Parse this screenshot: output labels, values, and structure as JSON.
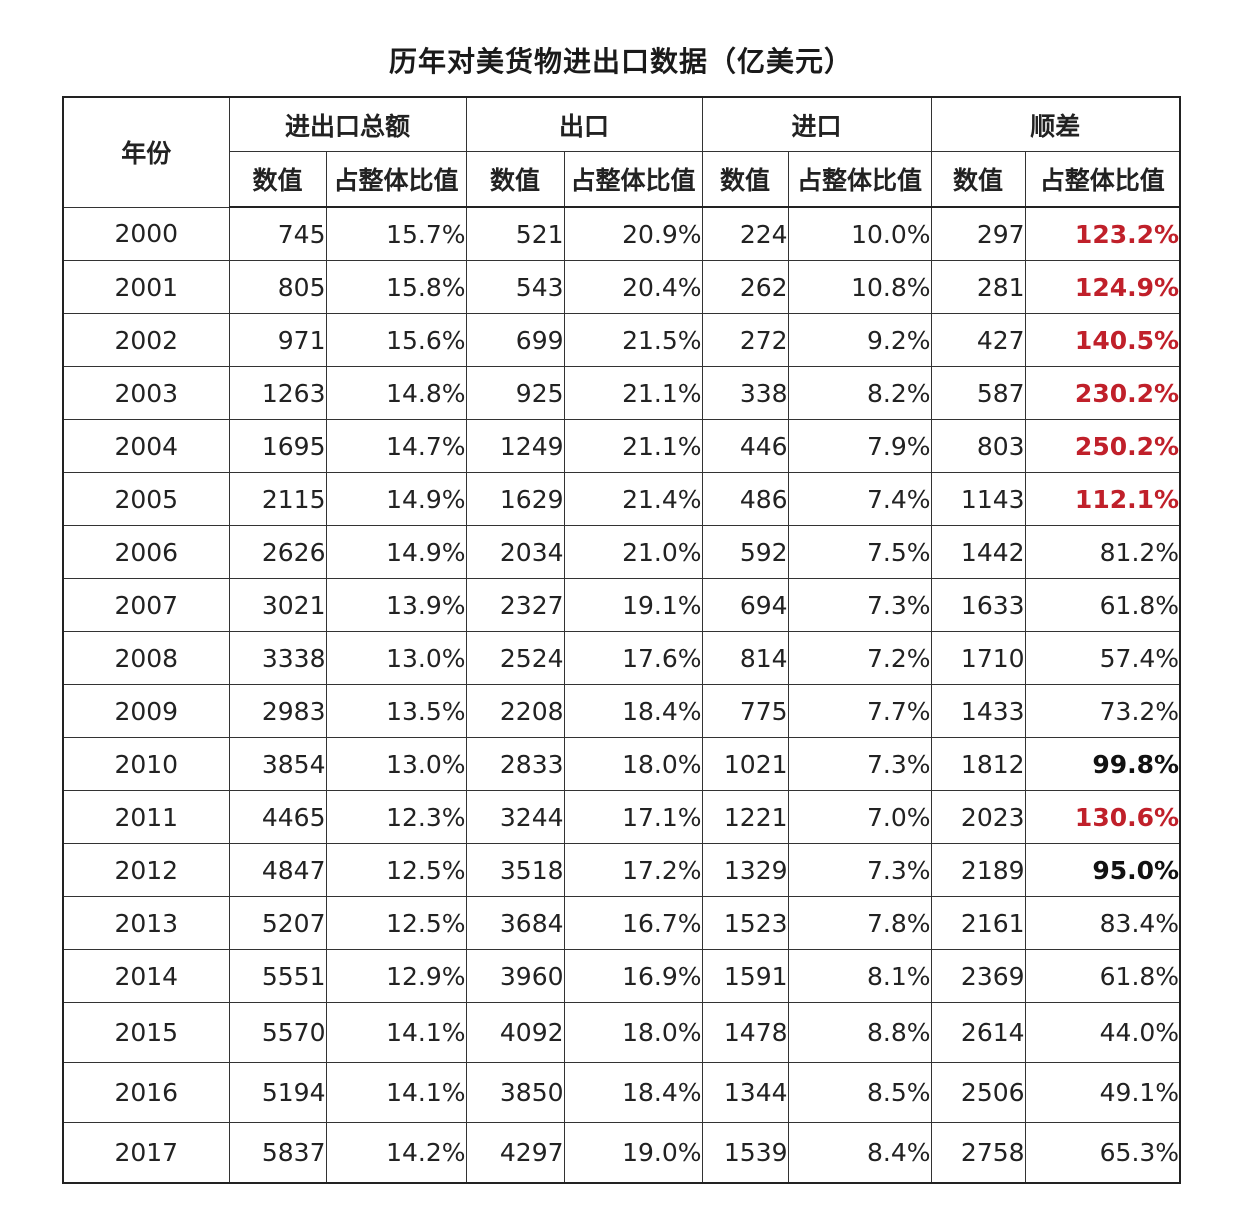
{
  "title": "历年对美货物进出口数据（亿美元）",
  "colors": {
    "highlight_red": "#c0202a",
    "border": "#333333"
  },
  "header": {
    "year": "年份",
    "groups": [
      "进出口总额",
      "出口",
      "进口",
      "顺差"
    ],
    "value": "数值",
    "ratio": "占整体比值"
  },
  "rows": [
    {
      "year": "2000",
      "total": "745",
      "total_ratio": "15.7%",
      "export": "521",
      "export_ratio": "20.9%",
      "import": "224",
      "import_ratio": "10.0%",
      "surplus": "297",
      "surplus_ratio": "123.2%",
      "emphasis": "red"
    },
    {
      "year": "2001",
      "total": "805",
      "total_ratio": "15.8%",
      "export": "543",
      "export_ratio": "20.4%",
      "import": "262",
      "import_ratio": "10.8%",
      "surplus": "281",
      "surplus_ratio": "124.9%",
      "emphasis": "red"
    },
    {
      "year": "2002",
      "total": "971",
      "total_ratio": "15.6%",
      "export": "699",
      "export_ratio": "21.5%",
      "import": "272",
      "import_ratio": "9.2%",
      "surplus": "427",
      "surplus_ratio": "140.5%",
      "emphasis": "red"
    },
    {
      "year": "2003",
      "total": "1263",
      "total_ratio": "14.8%",
      "export": "925",
      "export_ratio": "21.1%",
      "import": "338",
      "import_ratio": "8.2%",
      "surplus": "587",
      "surplus_ratio": "230.2%",
      "emphasis": "red"
    },
    {
      "year": "2004",
      "total": "1695",
      "total_ratio": "14.7%",
      "export": "1249",
      "export_ratio": "21.1%",
      "import": "446",
      "import_ratio": "7.9%",
      "surplus": "803",
      "surplus_ratio": "250.2%",
      "emphasis": "red"
    },
    {
      "year": "2005",
      "total": "2115",
      "total_ratio": "14.9%",
      "export": "1629",
      "export_ratio": "21.4%",
      "import": "486",
      "import_ratio": "7.4%",
      "surplus": "1143",
      "surplus_ratio": "112.1%",
      "emphasis": "red"
    },
    {
      "year": "2006",
      "total": "2626",
      "total_ratio": "14.9%",
      "export": "2034",
      "export_ratio": "21.0%",
      "import": "592",
      "import_ratio": "7.5%",
      "surplus": "1442",
      "surplus_ratio": "81.2%",
      "emphasis": "none"
    },
    {
      "year": "2007",
      "total": "3021",
      "total_ratio": "13.9%",
      "export": "2327",
      "export_ratio": "19.1%",
      "import": "694",
      "import_ratio": "7.3%",
      "surplus": "1633",
      "surplus_ratio": "61.8%",
      "emphasis": "none"
    },
    {
      "year": "2008",
      "total": "3338",
      "total_ratio": "13.0%",
      "export": "2524",
      "export_ratio": "17.6%",
      "import": "814",
      "import_ratio": "7.2%",
      "surplus": "1710",
      "surplus_ratio": "57.4%",
      "emphasis": "none"
    },
    {
      "year": "2009",
      "total": "2983",
      "total_ratio": "13.5%",
      "export": "2208",
      "export_ratio": "18.4%",
      "import": "775",
      "import_ratio": "7.7%",
      "surplus": "1433",
      "surplus_ratio": "73.2%",
      "emphasis": "none"
    },
    {
      "year": "2010",
      "total": "3854",
      "total_ratio": "13.0%",
      "export": "2833",
      "export_ratio": "18.0%",
      "import": "1021",
      "import_ratio": "7.3%",
      "surplus": "1812",
      "surplus_ratio": "99.8%",
      "emphasis": "bold"
    },
    {
      "year": "2011",
      "total": "4465",
      "total_ratio": "12.3%",
      "export": "3244",
      "export_ratio": "17.1%",
      "import": "1221",
      "import_ratio": "7.0%",
      "surplus": "2023",
      "surplus_ratio": "130.6%",
      "emphasis": "red"
    },
    {
      "year": "2012",
      "total": "4847",
      "total_ratio": "12.5%",
      "export": "3518",
      "export_ratio": "17.2%",
      "import": "1329",
      "import_ratio": "7.3%",
      "surplus": "2189",
      "surplus_ratio": "95.0%",
      "emphasis": "bold"
    },
    {
      "year": "2013",
      "total": "5207",
      "total_ratio": "12.5%",
      "export": "3684",
      "export_ratio": "16.7%",
      "import": "1523",
      "import_ratio": "7.8%",
      "surplus": "2161",
      "surplus_ratio": "83.4%",
      "emphasis": "none"
    },
    {
      "year": "2014",
      "total": "5551",
      "total_ratio": "12.9%",
      "export": "3960",
      "export_ratio": "16.9%",
      "import": "1591",
      "import_ratio": "8.1%",
      "surplus": "2369",
      "surplus_ratio": "61.8%",
      "emphasis": "none"
    },
    {
      "year": "2015",
      "total": "5570",
      "total_ratio": "14.1%",
      "export": "4092",
      "export_ratio": "18.0%",
      "import": "1478",
      "import_ratio": "8.8%",
      "surplus": "2614",
      "surplus_ratio": "44.0%",
      "emphasis": "none"
    },
    {
      "year": "2016",
      "total": "5194",
      "total_ratio": "14.1%",
      "export": "3850",
      "export_ratio": "18.4%",
      "import": "1344",
      "import_ratio": "8.5%",
      "surplus": "2506",
      "surplus_ratio": "49.1%",
      "emphasis": "none"
    },
    {
      "year": "2017",
      "total": "5837",
      "total_ratio": "14.2%",
      "export": "4297",
      "export_ratio": "19.0%",
      "import": "1539",
      "import_ratio": "8.4%",
      "surplus": "2758",
      "surplus_ratio": "65.3%",
      "emphasis": "none"
    }
  ]
}
